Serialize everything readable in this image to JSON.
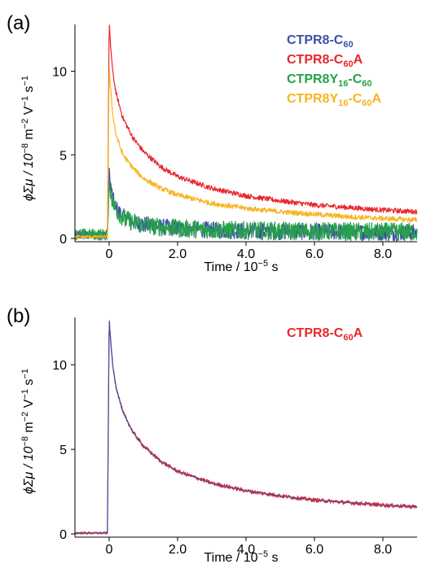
{
  "chart_data": [
    {
      "panel_label": "(a)",
      "type": "line",
      "xlabel": {
        "main": "Time / 10",
        "sup": "−5",
        "tail": " s"
      },
      "ylabel": {
        "prefix": "ϕΣμ / 10",
        "sup1": "−8",
        "mid1": " m",
        "sup2": "−2",
        "mid2": " V",
        "sup3": "−1",
        "mid3": " s",
        "sup4": "−1"
      },
      "xlim": [
        -1.0,
        9.0
      ],
      "ylim": [
        0,
        12.8
      ],
      "xticks": [
        "0",
        "2.0",
        "4.0",
        "6.0",
        "8.0"
      ],
      "xtick_values": [
        0,
        2,
        4,
        6,
        8
      ],
      "yticks": [
        "0",
        "5",
        "10"
      ],
      "ytick_values": [
        0,
        5,
        10
      ],
      "legend_position": "top-right",
      "series": [
        {
          "name_parts": [
            "CTPR8-C",
            "60",
            ""
          ],
          "color": "#3c50a8",
          "baseline": 0.2,
          "peak": 3.8,
          "tail": 0.35,
          "noise": 0.5,
          "x": [
            -1.0,
            -0.05,
            0.0,
            0.1,
            0.2,
            0.4,
            0.7,
            1.0,
            1.5,
            2.0,
            3.0,
            4.0,
            5.0,
            6.0,
            7.0,
            8.0,
            9.0
          ],
          "y": [
            0.2,
            0.2,
            3.8,
            2.4,
            1.8,
            1.3,
            1.0,
            0.85,
            0.7,
            0.6,
            0.5,
            0.45,
            0.42,
            0.4,
            0.38,
            0.36,
            0.35
          ]
        },
        {
          "name_parts": [
            "CTPR8-C",
            "60",
            "A"
          ],
          "color": "#e8262b",
          "baseline": 0.1,
          "peak": 12.7,
          "tail": 1.6,
          "noise": 0.15,
          "x": [
            -1.0,
            -0.05,
            0.0,
            0.1,
            0.2,
            0.4,
            0.7,
            1.0,
            1.5,
            2.0,
            3.0,
            4.0,
            5.0,
            6.0,
            7.0,
            8.0,
            9.0
          ],
          "y": [
            0.1,
            0.1,
            12.7,
            10.0,
            8.7,
            7.2,
            6.0,
            5.2,
            4.3,
            3.7,
            3.0,
            2.55,
            2.25,
            2.0,
            1.85,
            1.7,
            1.6
          ]
        },
        {
          "name_parts": [
            "CTPR8Y",
            "16",
            "-C",
            "60",
            ""
          ],
          "color": "#26a049",
          "baseline": 0.25,
          "peak": 3.2,
          "tail": 0.4,
          "noise": 0.55,
          "x": [
            -1.0,
            -0.05,
            0.0,
            0.1,
            0.2,
            0.4,
            0.7,
            1.0,
            1.5,
            2.0,
            3.0,
            4.0,
            5.0,
            6.0,
            7.0,
            8.0,
            9.0
          ],
          "y": [
            0.25,
            0.25,
            3.2,
            2.2,
            1.7,
            1.25,
            0.95,
            0.8,
            0.68,
            0.6,
            0.52,
            0.48,
            0.45,
            0.43,
            0.41,
            0.4,
            0.4
          ]
        },
        {
          "name_parts": [
            "CTPR8Y",
            "16",
            "-C",
            "60",
            "A"
          ],
          "color": "#f7b321",
          "baseline": 0.1,
          "peak": 10.0,
          "tail": 1.1,
          "noise": 0.15,
          "x": [
            -1.0,
            -0.05,
            0.0,
            0.1,
            0.2,
            0.4,
            0.7,
            1.0,
            1.5,
            2.0,
            3.0,
            4.0,
            5.0,
            6.0,
            7.0,
            8.0,
            9.0
          ],
          "y": [
            0.1,
            0.1,
            10.0,
            7.5,
            6.2,
            5.0,
            4.2,
            3.6,
            3.0,
            2.6,
            2.1,
            1.8,
            1.6,
            1.45,
            1.3,
            1.2,
            1.1
          ]
        }
      ]
    },
    {
      "panel_label": "(b)",
      "type": "line",
      "xlabel": {
        "main": "Time / 10",
        "sup": "−5",
        "tail": " s"
      },
      "ylabel": {
        "prefix": "ϕΣμ / 10",
        "sup1": "−8",
        "mid1": " m",
        "sup2": "−2",
        "mid2": " V",
        "sup3": "−1",
        "mid3": " s",
        "sup4": "−1"
      },
      "xlim": [
        -1.0,
        9.0
      ],
      "ylim": [
        0,
        12.8
      ],
      "xticks": [
        "0",
        "2.0",
        "4.0",
        "6.0",
        "8.0"
      ],
      "xtick_values": [
        0,
        2,
        4,
        6,
        8
      ],
      "yticks": [
        "0",
        "5",
        "10"
      ],
      "ytick_values": [
        0,
        5,
        10
      ],
      "legend_position": "top-right",
      "series": [
        {
          "name_parts": [
            "CTPR8-C",
            "60",
            "A"
          ],
          "color": "#e8262b",
          "baseline": 0.05,
          "peak": 12.6,
          "tail": 1.6,
          "noise": 0.12,
          "x": [
            -1.0,
            -0.05,
            0.0,
            0.1,
            0.2,
            0.4,
            0.7,
            1.0,
            1.5,
            2.0,
            3.0,
            4.0,
            5.0,
            6.0,
            7.0,
            8.0,
            9.0
          ],
          "y": [
            0.05,
            0.05,
            12.6,
            10.0,
            8.7,
            7.2,
            6.0,
            5.2,
            4.3,
            3.7,
            3.0,
            2.55,
            2.25,
            2.0,
            1.85,
            1.7,
            1.6
          ]
        },
        {
          "name_parts": [],
          "color": "#3c50a8",
          "baseline": 0.05,
          "peak": 12.6,
          "tail": 1.6,
          "noise": 0.0,
          "x": [
            -1.0,
            -0.05,
            0.0,
            0.1,
            0.2,
            0.4,
            0.7,
            1.0,
            1.5,
            2.0,
            3.0,
            4.0,
            5.0,
            6.0,
            7.0,
            8.0,
            9.0
          ],
          "y": [
            0.05,
            0.05,
            12.6,
            10.0,
            8.7,
            7.2,
            6.0,
            5.2,
            4.3,
            3.7,
            3.0,
            2.55,
            2.25,
            2.0,
            1.85,
            1.7,
            1.6
          ]
        }
      ]
    }
  ]
}
